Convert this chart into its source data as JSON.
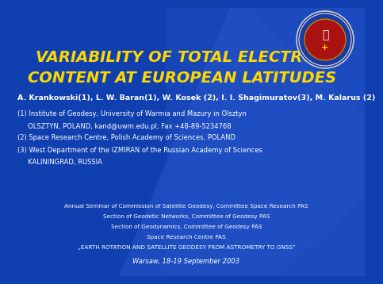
{
  "bg_color": "#1040b0",
  "title_line1": "VARIABILITY OF TOTAL ELECTRON",
  "title_line2": "CONTENT AT EUROPEAN LATITUDES",
  "title_color": "#FFD700",
  "title_fontsize": 14,
  "authors": "A. Krankowski(1), L. W. Baran(1), W. Kosek (2), I. I. Shagimuratov(3), M. Kalarus (2)",
  "authors_color": "#FFFFFF",
  "authors_fontsize": 6.8,
  "affil1_line1": "(1) Institute of Geodesy, University of Warmia and Mazury in Olsztyn",
  "affil1_line2": "     OLSZTYN, POLAND, kand@uwm.edu.pl; Fax:+48-89-5234768",
  "affil2": "(2) Space Research Centre, Polish Academy of Sciences, POLAND",
  "affil3_line1": "(3) West Department of the IZMIRAN of the Russian Academy of Sciences",
  "affil3_line2": "     KALININGRAD, RUSSIA",
  "affil_color": "#FFFFFF",
  "affil_fontsize": 6.0,
  "seminar_line1": "Annual Seminar of Commission of Satellite Geodesy, Committee Space Research PAS",
  "seminar_line2": "Section of Geodetic Networks, Committee of Geodesy PAS",
  "seminar_line3": "Section of Geodynamics, Committee of Geodesy PAS",
  "seminar_line4": "Space Research Centre PAS",
  "seminar_line5": "„EARTH ROTATION AND SATELLITE GEODESY FROM ASTROMETRY TO GNSS”",
  "seminar_color": "#FFFFFF",
  "seminar_fontsize": 5.2,
  "date": "Warsaw, 18-19 September 2003",
  "date_color": "#FFFFFF",
  "date_fontsize": 6.0,
  "stripe_color": "#2a5ad0",
  "stripe_alpha": 0.45
}
